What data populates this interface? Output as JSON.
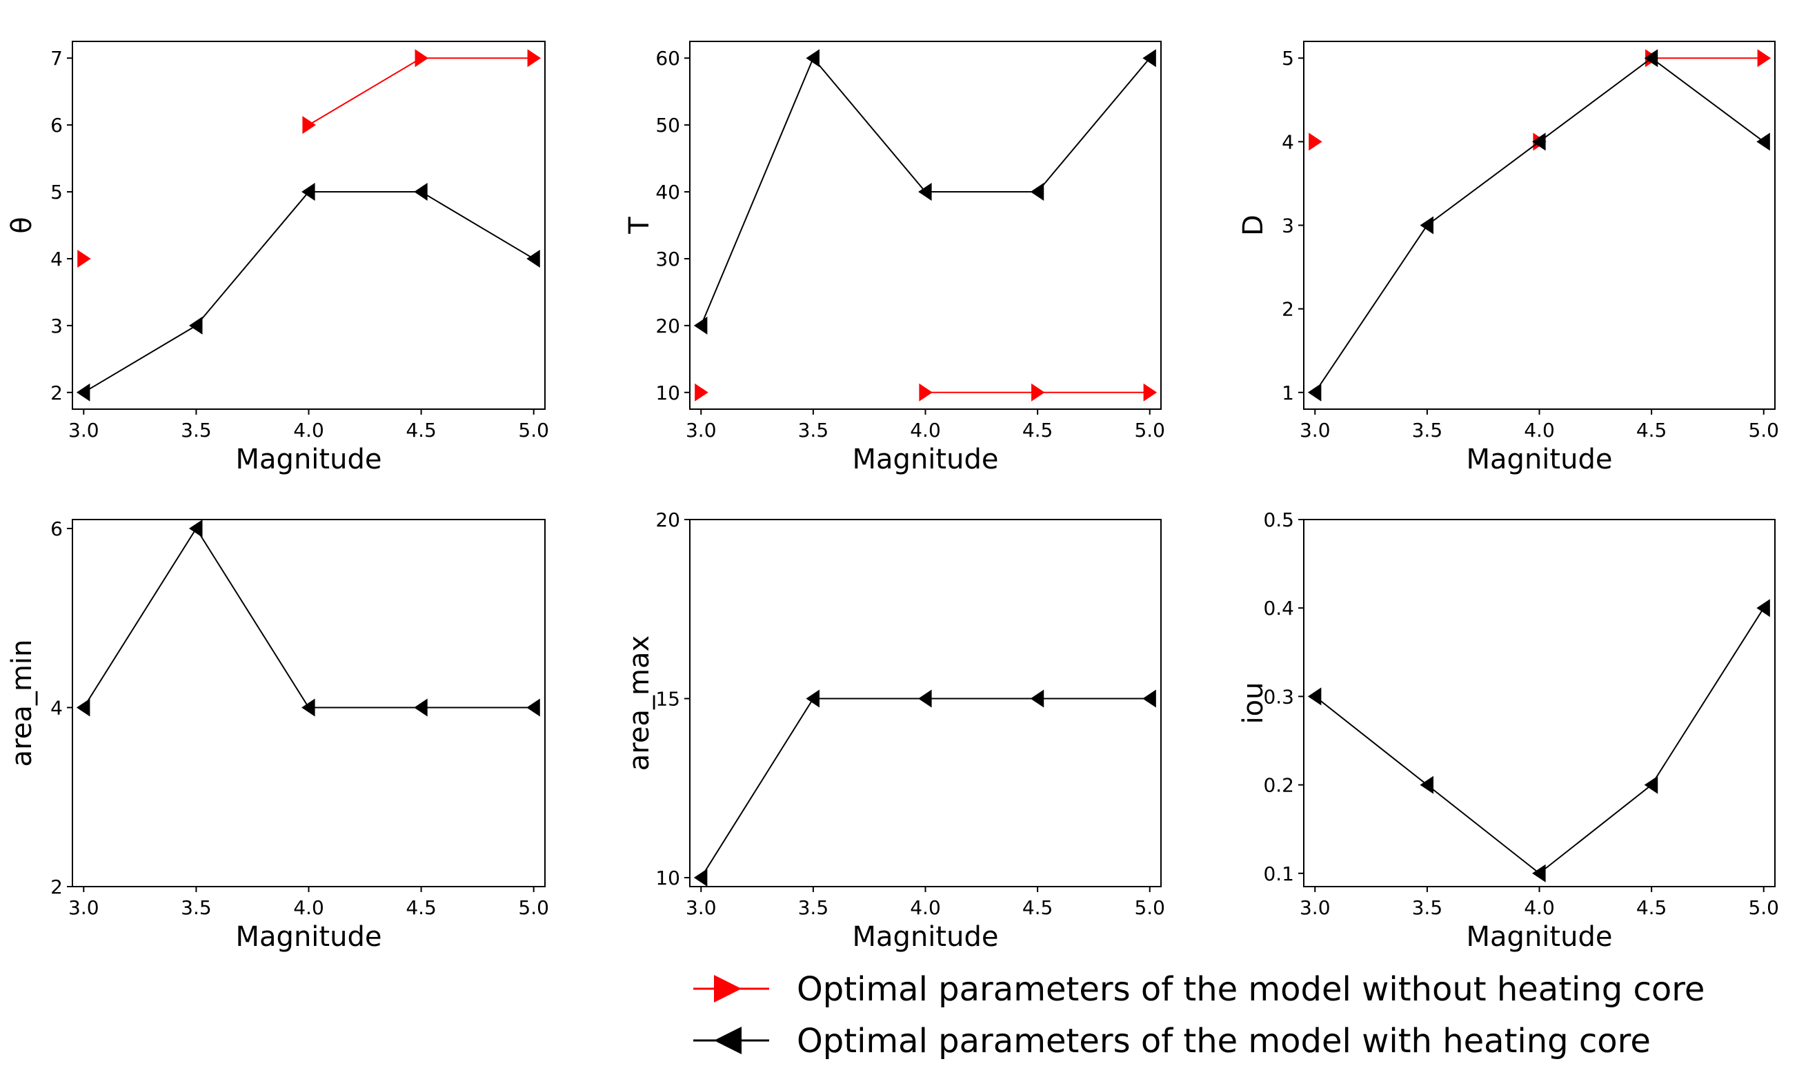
{
  "colors": {
    "without_core": "#ff0000",
    "with_core": "#000000",
    "frame": "#000000",
    "background": "#ffffff"
  },
  "legend": {
    "items": [
      {
        "key": "without_core",
        "label": "Optimal parameters of the model without heating core",
        "marker": "right-triangle"
      },
      {
        "key": "with_core",
        "label": "Optimal parameters of the model with heating core",
        "marker": "left-triangle"
      }
    ]
  },
  "chart_data": [
    {
      "type": "line",
      "xlabel": "Magnitude",
      "ylabel": "θ",
      "xlim": [
        2.95,
        5.05
      ],
      "ylim": [
        1.75,
        7.25
      ],
      "xticks": [
        3.0,
        3.5,
        4.0,
        4.5,
        5.0
      ],
      "yticks": [
        2,
        3,
        4,
        5,
        6,
        7
      ],
      "series": [
        {
          "key": "without_core",
          "name": "Optimal parameters of the model without heating core",
          "segments": [
            {
              "x": [
                3.0
              ],
              "y": [
                4
              ]
            },
            {
              "x": [
                4.0,
                4.5,
                5.0
              ],
              "y": [
                6,
                7,
                7
              ]
            }
          ]
        },
        {
          "key": "with_core",
          "name": "Optimal parameters of the model with heating core",
          "segments": [
            {
              "x": [
                3.0,
                3.5,
                4.0,
                4.5,
                5.0
              ],
              "y": [
                2,
                3,
                5,
                5,
                4
              ]
            }
          ]
        }
      ]
    },
    {
      "type": "line",
      "xlabel": "Magnitude",
      "ylabel": "T",
      "xlim": [
        2.95,
        5.05
      ],
      "ylim": [
        7.5,
        62.5
      ],
      "xticks": [
        3.0,
        3.5,
        4.0,
        4.5,
        5.0
      ],
      "yticks": [
        10,
        20,
        30,
        40,
        50,
        60
      ],
      "series": [
        {
          "key": "without_core",
          "name": "Optimal parameters of the model without heating core",
          "segments": [
            {
              "x": [
                3.0
              ],
              "y": [
                10
              ]
            },
            {
              "x": [
                4.0,
                4.5,
                5.0
              ],
              "y": [
                10,
                10,
                10
              ]
            }
          ]
        },
        {
          "key": "with_core",
          "name": "Optimal parameters of the model with heating core",
          "segments": [
            {
              "x": [
                3.0,
                3.5,
                4.0,
                4.5,
                5.0
              ],
              "y": [
                20,
                60,
                40,
                40,
                60
              ]
            }
          ]
        }
      ]
    },
    {
      "type": "line",
      "xlabel": "Magnitude",
      "ylabel": "D",
      "xlim": [
        2.95,
        5.05
      ],
      "ylim": [
        0.8,
        5.2
      ],
      "xticks": [
        3.0,
        3.5,
        4.0,
        4.5,
        5.0
      ],
      "yticks": [
        1,
        2,
        3,
        4,
        5
      ],
      "series": [
        {
          "key": "without_core",
          "name": "Optimal parameters of the model without heating core",
          "segments": [
            {
              "x": [
                3.0
              ],
              "y": [
                4
              ]
            },
            {
              "x": [
                4.0
              ],
              "y": [
                4
              ]
            },
            {
              "x": [
                4.5,
                5.0
              ],
              "y": [
                5,
                5
              ]
            }
          ]
        },
        {
          "key": "with_core",
          "name": "Optimal parameters of the model with heating core",
          "segments": [
            {
              "x": [
                3.0,
                3.5,
                4.0,
                4.5,
                5.0
              ],
              "y": [
                1,
                3,
                4,
                5,
                4
              ]
            }
          ]
        }
      ]
    },
    {
      "type": "line",
      "xlabel": "Magnitude",
      "ylabel": "area_min",
      "xlim": [
        2.95,
        5.05
      ],
      "ylim": [
        2.0,
        6.1
      ],
      "xticks": [
        3.0,
        3.5,
        4.0,
        4.5,
        5.0
      ],
      "yticks": [
        2,
        4,
        6
      ],
      "series": [
        {
          "key": "with_core",
          "name": "Optimal parameters of the model with heating core",
          "segments": [
            {
              "x": [
                3.0,
                3.5,
                4.0,
                4.5,
                5.0
              ],
              "y": [
                4,
                6,
                4,
                4,
                4
              ]
            }
          ]
        }
      ]
    },
    {
      "type": "line",
      "xlabel": "Magnitude",
      "ylabel": "area_max",
      "xlim": [
        2.95,
        5.05
      ],
      "ylim": [
        9.75,
        20.0
      ],
      "xticks": [
        3.0,
        3.5,
        4.0,
        4.5,
        5.0
      ],
      "yticks": [
        10,
        15,
        20
      ],
      "series": [
        {
          "key": "with_core",
          "name": "Optimal parameters of the model with heating core",
          "segments": [
            {
              "x": [
                3.0,
                3.5,
                4.0,
                4.5,
                5.0
              ],
              "y": [
                10,
                15,
                15,
                15,
                15
              ]
            }
          ]
        }
      ]
    },
    {
      "type": "line",
      "xlabel": "Magnitude",
      "ylabel": "iou",
      "xlim": [
        2.95,
        5.05
      ],
      "ylim": [
        0.085,
        0.5
      ],
      "xticks": [
        3.0,
        3.5,
        4.0,
        4.5,
        5.0
      ],
      "yticks": [
        0.1,
        0.2,
        0.3,
        0.4,
        0.5
      ],
      "series": [
        {
          "key": "with_core",
          "name": "Optimal parameters of the model with heating core",
          "segments": [
            {
              "x": [
                3.0,
                3.5,
                4.0,
                4.5,
                5.0
              ],
              "y": [
                0.3,
                0.2,
                0.1,
                0.2,
                0.4
              ]
            }
          ]
        }
      ]
    }
  ]
}
